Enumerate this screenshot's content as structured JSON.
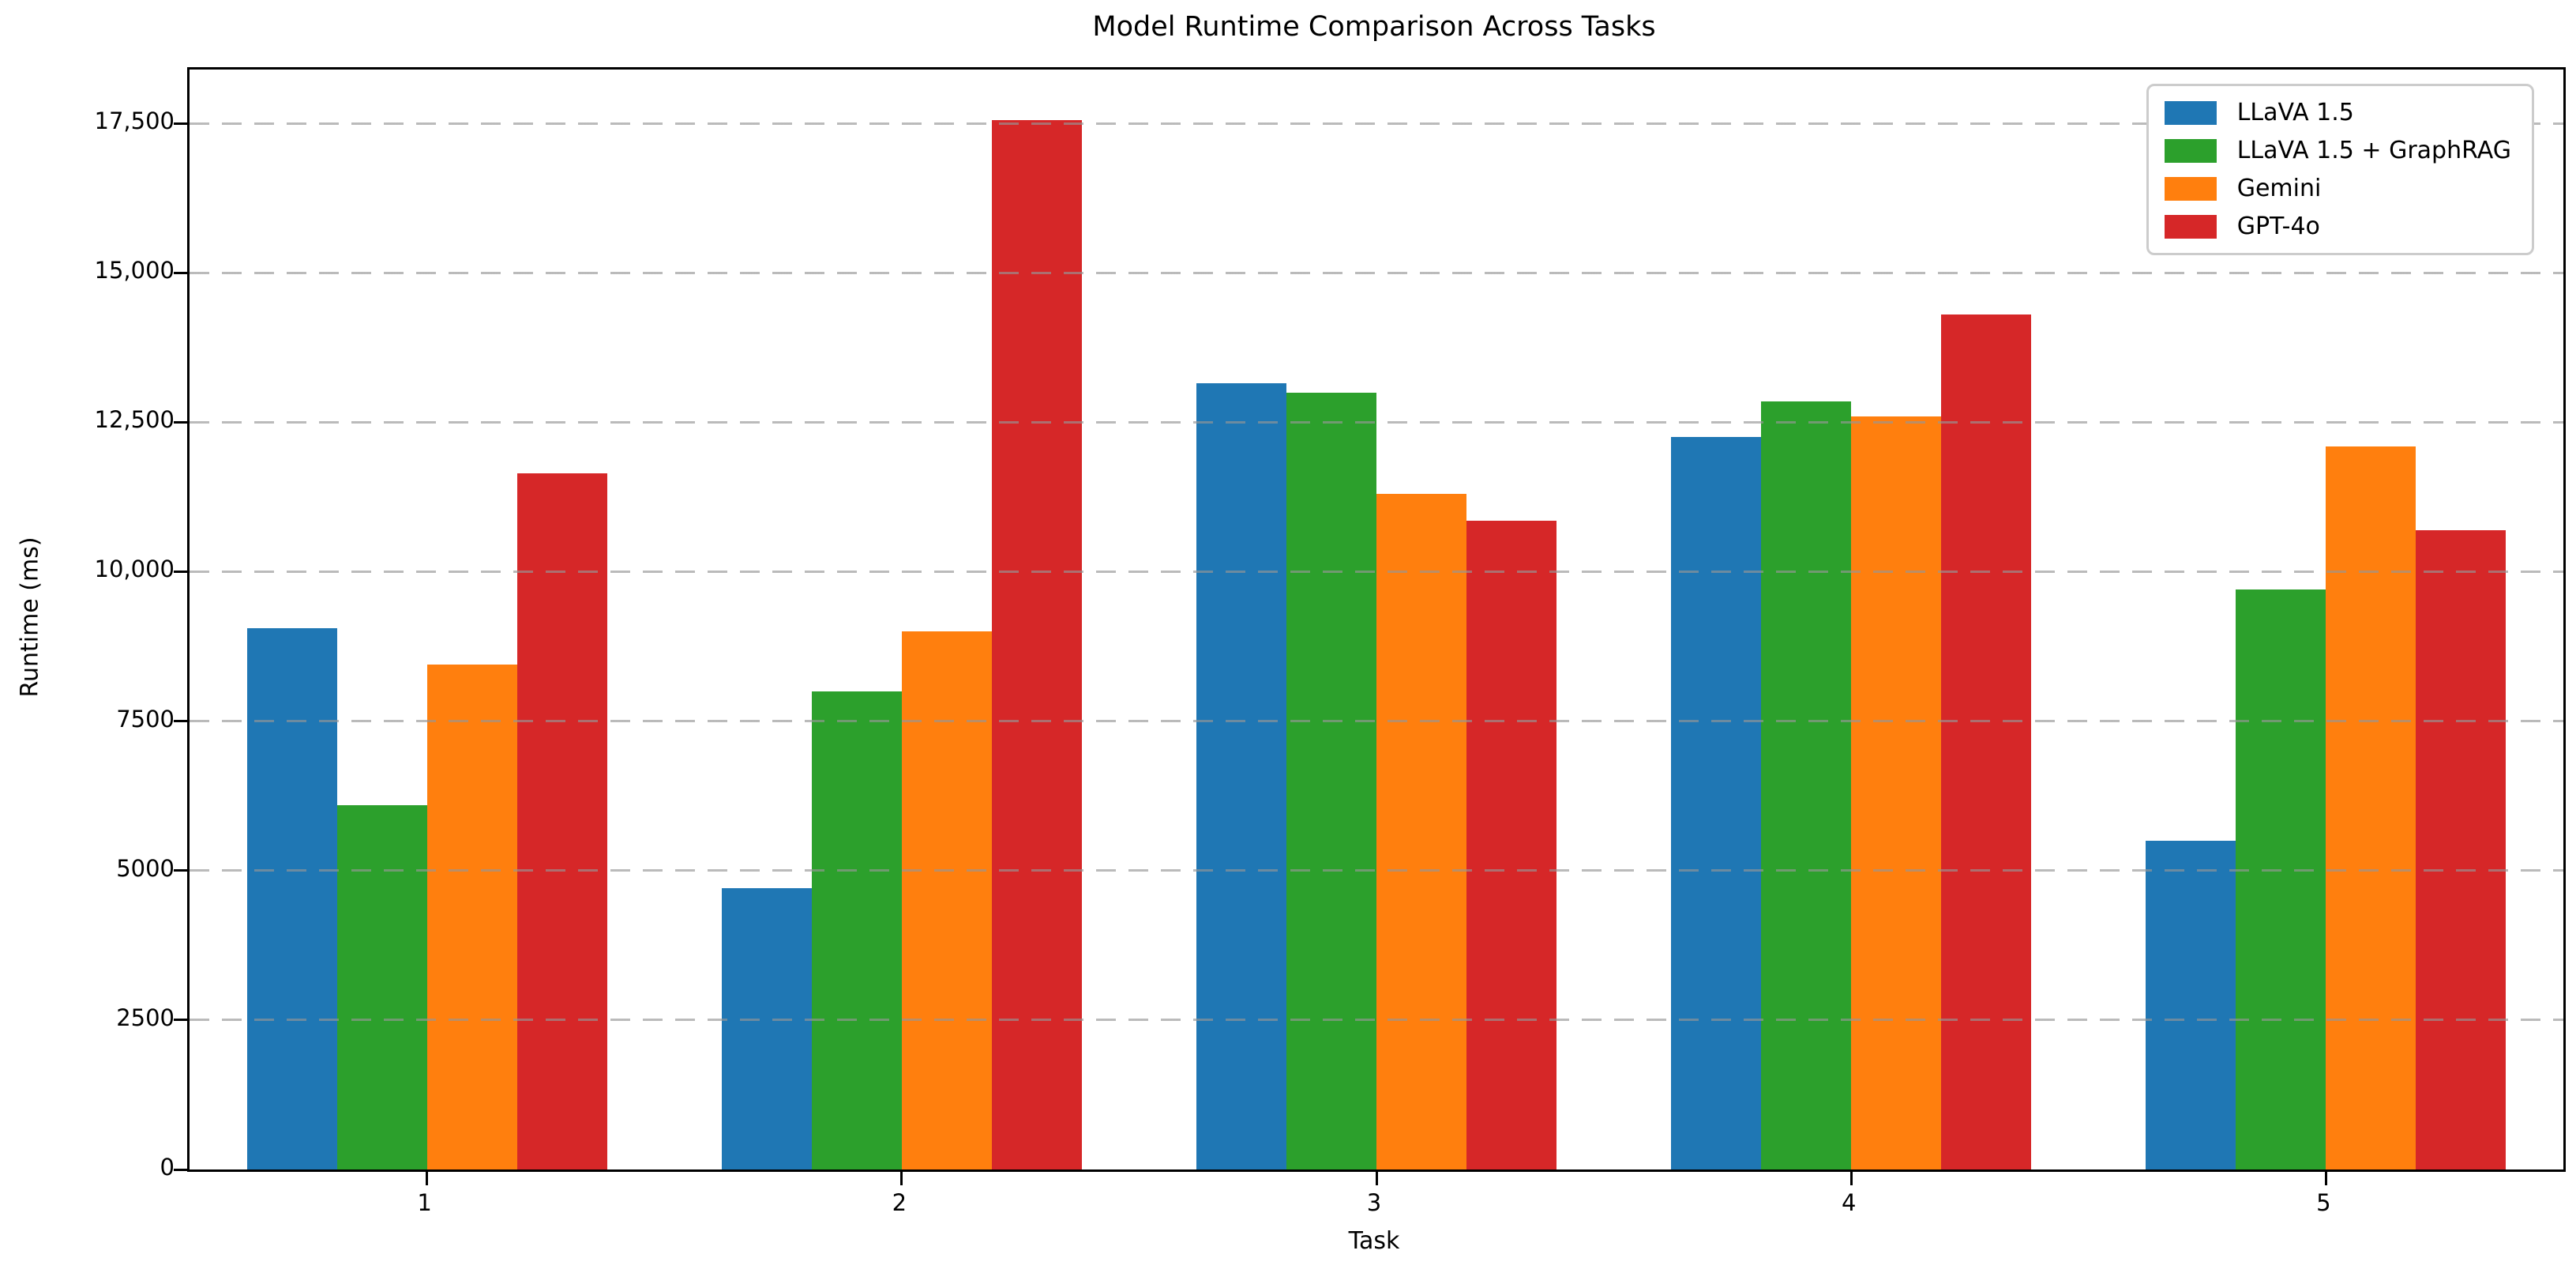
{
  "chart_data": {
    "type": "bar",
    "title": "Model Runtime Comparison Across Tasks",
    "xlabel": "Task",
    "ylabel": "Runtime (ms)",
    "categories": [
      "1",
      "2",
      "3",
      "4",
      "5"
    ],
    "series": [
      {
        "name": "LLaVA 1.5",
        "color": "#1f77b4",
        "values": [
          9050,
          4700,
          13150,
          12250,
          5500
        ]
      },
      {
        "name": "LLaVA 1.5 + GraphRAG",
        "color": "#2ca02c",
        "values": [
          6100,
          8000,
          13000,
          12850,
          9700
        ]
      },
      {
        "name": "Gemini",
        "color": "#ff7f0e",
        "values": [
          8450,
          9000,
          11300,
          12600,
          12100
        ]
      },
      {
        "name": "GPT-4o",
        "color": "#d62728",
        "values": [
          11650,
          17550,
          10850,
          14300,
          10700
        ]
      }
    ],
    "ylim": [
      0,
      18400
    ],
    "yticks": [
      {
        "value": 0,
        "label": "0"
      },
      {
        "value": 2500,
        "label": "2500"
      },
      {
        "value": 5000,
        "label": "5000"
      },
      {
        "value": 7500,
        "label": "7500"
      },
      {
        "value": 10000,
        "label": "10,000"
      },
      {
        "value": 12500,
        "label": "12,500"
      },
      {
        "value": 15000,
        "label": "15,000"
      },
      {
        "value": 17500,
        "label": "17,500"
      }
    ],
    "grid": {
      "axis": "y",
      "style": "dashed",
      "color": "#b0b0b0",
      "drawn_above_bars": true
    },
    "legend_position": "upper right",
    "background": "#ffffff",
    "spine_color": "#000000"
  }
}
